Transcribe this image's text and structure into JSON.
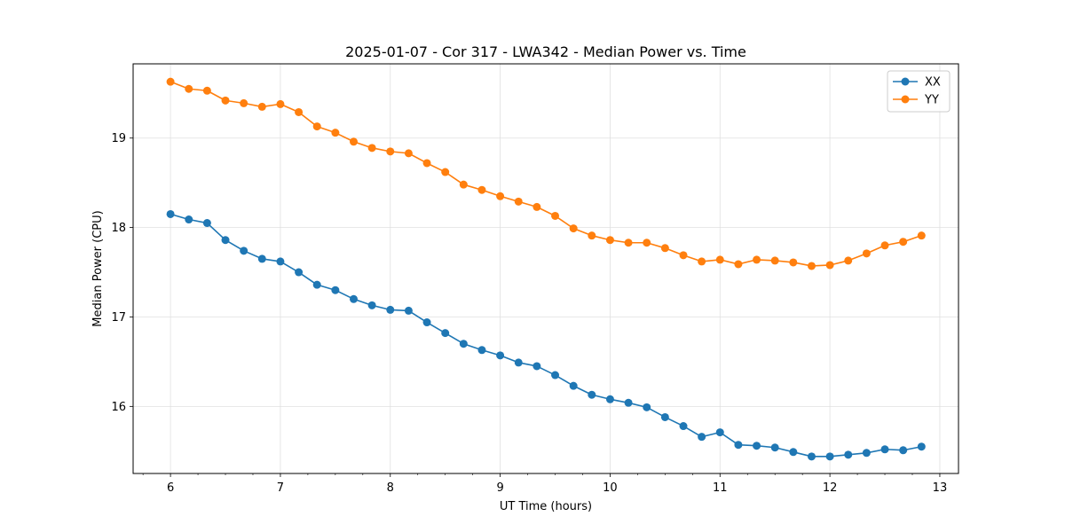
{
  "chart_data": {
    "type": "line",
    "title": "2025-01-07 - Cor 317 - LWA342 - Median Power vs. Time",
    "xlabel": "UT Time (hours)",
    "ylabel": "Median Power (CPU)",
    "xlim": [
      5.66,
      13.17
    ],
    "ylim": [
      15.25,
      19.83
    ],
    "xticks": [
      6,
      7,
      8,
      9,
      10,
      11,
      12,
      13
    ],
    "xtick_labels": [
      "6",
      "7",
      "8",
      "9",
      "10",
      "11",
      "12",
      "13"
    ],
    "x_minor_step": 0.25,
    "yticks": [
      16,
      17,
      18,
      19
    ],
    "ytick_labels": [
      "16",
      "17",
      "18",
      "19"
    ],
    "grid": true,
    "legend_position": "top-right",
    "x": [
      6.0,
      6.1667,
      6.3333,
      6.5,
      6.6667,
      6.8333,
      7.0,
      7.1667,
      7.3333,
      7.5,
      7.6667,
      7.8333,
      8.0,
      8.1667,
      8.3333,
      8.5,
      8.6667,
      8.8333,
      9.0,
      9.1667,
      9.3333,
      9.5,
      9.6667,
      9.8333,
      10.0,
      10.1667,
      10.3333,
      10.5,
      10.6667,
      10.8333,
      11.0,
      11.1667,
      11.3333,
      11.5,
      11.6667,
      11.8333,
      12.0,
      12.1667,
      12.3333,
      12.5,
      12.6667,
      12.8333
    ],
    "series": [
      {
        "name": "XX",
        "color": "#1f77b4",
        "values": [
          18.15,
          18.09,
          18.05,
          17.86,
          17.74,
          17.65,
          17.62,
          17.5,
          17.36,
          17.3,
          17.2,
          17.13,
          17.08,
          17.07,
          16.94,
          16.82,
          16.7,
          16.63,
          16.57,
          16.49,
          16.45,
          16.35,
          16.23,
          16.13,
          16.08,
          16.04,
          15.99,
          15.88,
          15.78,
          15.66,
          15.71,
          15.57,
          15.56,
          15.54,
          15.49,
          15.44,
          15.44,
          15.46,
          15.48,
          15.52,
          15.51,
          15.55
        ]
      },
      {
        "name": "YY",
        "color": "#ff7f0e",
        "values": [
          19.63,
          19.55,
          19.53,
          19.42,
          19.39,
          19.35,
          19.38,
          19.29,
          19.13,
          19.06,
          18.96,
          18.89,
          18.85,
          18.83,
          18.72,
          18.62,
          18.48,
          18.42,
          18.35,
          18.29,
          18.23,
          18.13,
          17.99,
          17.91,
          17.86,
          17.83,
          17.83,
          17.77,
          17.69,
          17.62,
          17.64,
          17.59,
          17.64,
          17.63,
          17.61,
          17.57,
          17.58,
          17.63,
          17.71,
          17.8,
          17.84,
          17.91
        ]
      }
    ]
  }
}
